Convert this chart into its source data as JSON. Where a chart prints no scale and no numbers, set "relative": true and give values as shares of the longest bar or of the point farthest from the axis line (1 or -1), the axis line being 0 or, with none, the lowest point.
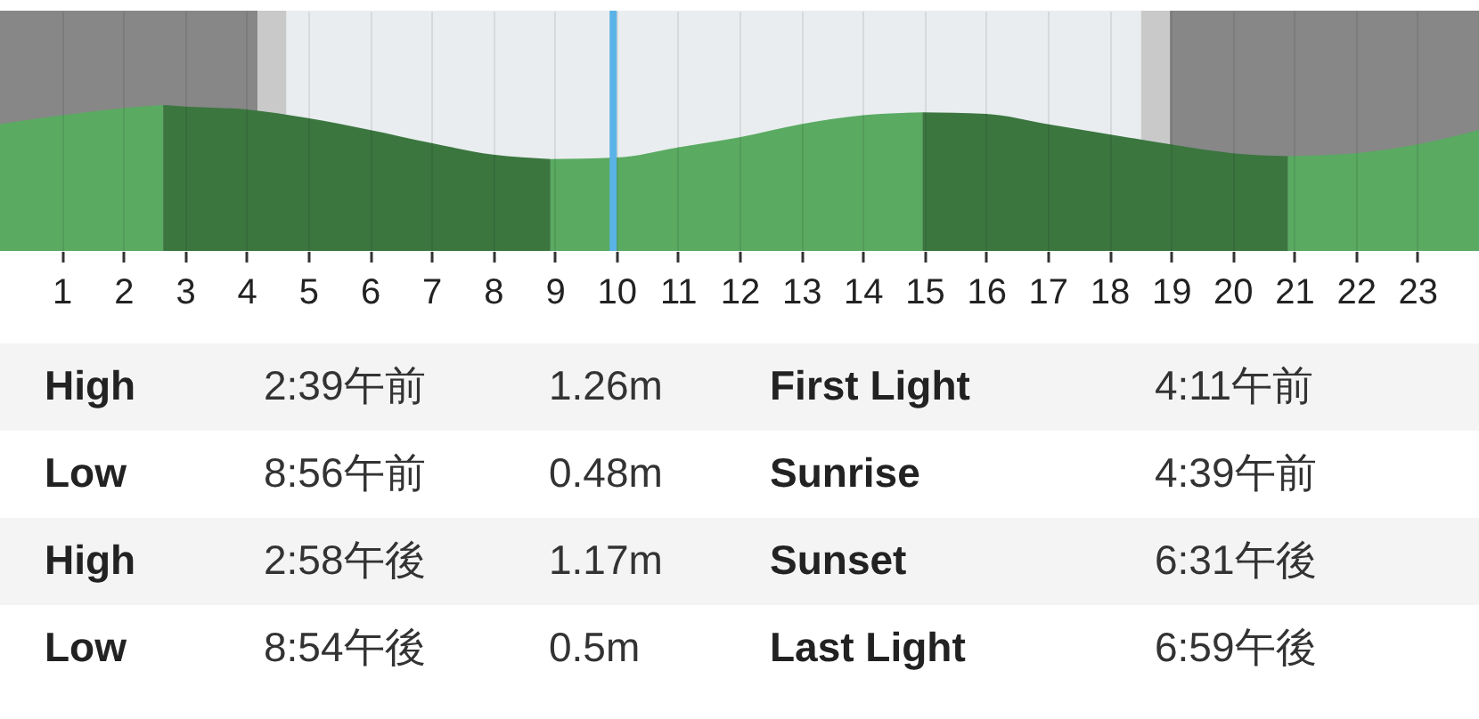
{
  "chart_data": {
    "type": "area",
    "relative": true,
    "xlim": [
      0,
      24
    ],
    "xticks": [
      1,
      2,
      3,
      4,
      5,
      6,
      7,
      8,
      9,
      10,
      11,
      12,
      13,
      14,
      15,
      16,
      17,
      18,
      19,
      20,
      21,
      22,
      23
    ],
    "grid": "x",
    "tick_labels": "x",
    "series": [
      {
        "color": "#5aaa62",
        "x": [
          0,
          1,
          2,
          2.65
        ],
        "values": [
          0.87,
          0.93,
          0.98,
          1.0
        ]
      },
      {
        "color": "#3b763f",
        "x": [
          2.65,
          3,
          4,
          5,
          6,
          7,
          8,
          8.933
        ],
        "values": [
          1.0,
          0.99,
          0.97,
          0.91,
          0.83,
          0.74,
          0.66,
          0.63
        ]
      },
      {
        "color": "#5aaa62",
        "x": [
          8.933,
          10,
          11,
          12,
          13,
          14,
          14.967
        ],
        "values": [
          0.63,
          0.64,
          0.71,
          0.78,
          0.87,
          0.93,
          0.95
        ]
      },
      {
        "color": "#3b763f",
        "x": [
          14.967,
          16,
          17,
          18,
          19,
          20,
          20.9
        ],
        "values": [
          0.95,
          0.94,
          0.87,
          0.8,
          0.73,
          0.67,
          0.65
        ]
      },
      {
        "color": "#5aaa62",
        "x": [
          20.9,
          22,
          23,
          24
        ],
        "values": [
          0.65,
          0.67,
          0.73,
          0.83
        ]
      }
    ],
    "bands": [
      {
        "axis": "x",
        "from": 0,
        "to": 4.183,
        "color": "#878787"
      },
      {
        "axis": "x",
        "from": 4.183,
        "to": 4.65,
        "color": "#c9c9c9"
      },
      {
        "axis": "x",
        "from": 4.65,
        "to": 18.517,
        "color": "#e9edef"
      },
      {
        "axis": "x",
        "from": 18.517,
        "to": 18.983,
        "color": "#c9c9c9"
      },
      {
        "axis": "x",
        "from": 18.983,
        "to": 24,
        "color": "#878787"
      }
    ],
    "ref_lines": [
      {
        "axis": "x",
        "value": 9.95,
        "color": "#5ab3e6"
      }
    ],
    "annotations": [
      "High",
      "2:39午前",
      "1.26m",
      "First Light",
      "4:11午前",
      "Low",
      "8:56午前",
      "0.48m",
      "Sunrise",
      "4:39午前",
      "High",
      "2:58午後",
      "1.17m",
      "Sunset",
      "6:31午後",
      "Low",
      "8:54午後",
      "0.5m",
      "Last Light",
      "6:59午後"
    ]
  }
}
